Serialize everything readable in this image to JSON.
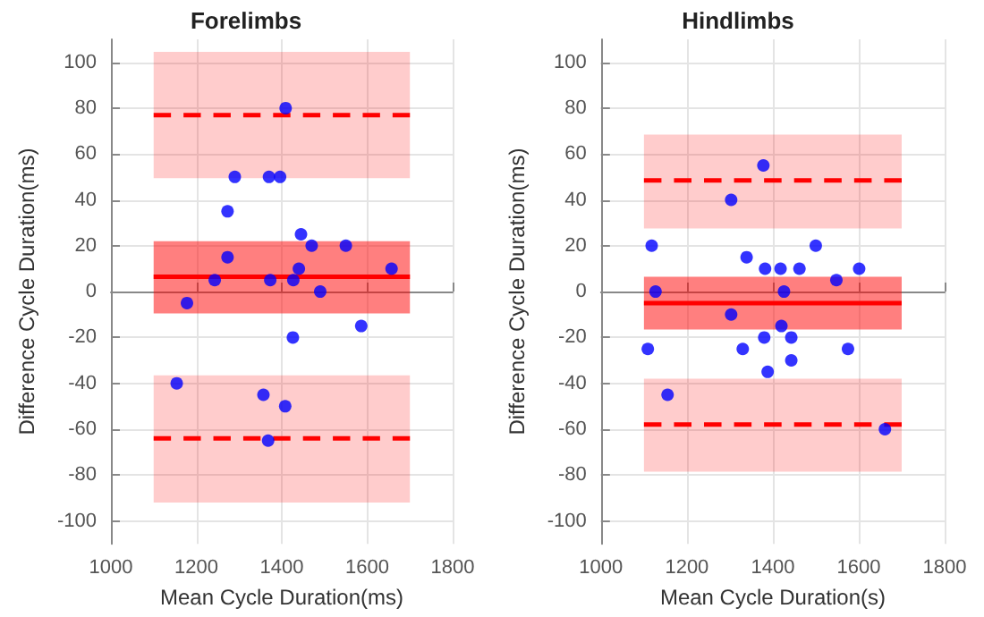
{
  "chart_data": [
    {
      "type": "scatter",
      "title": "Forelimbs",
      "xlabel": "Mean Cycle Duration(ms)",
      "ylabel": "Difference Cycle Duration(ms)",
      "xlim": [
        1000,
        1800
      ],
      "xticks": [
        1000,
        1200,
        1400,
        1600,
        1800
      ],
      "ylim": [
        -110,
        110
      ],
      "yticks": [
        -100,
        -80,
        -60,
        -40,
        -20,
        0,
        20,
        40,
        60,
        80,
        100
      ],
      "grid": true,
      "series": [
        {
          "type": "scatter",
          "color": "#0000ff",
          "marker": "circle",
          "x": [
            1409,
            1290,
            1370,
            1396,
            1273,
            1445,
            1470,
            1550,
            1273,
            1657,
            1440,
            1243,
            1373,
            1427,
            1490,
            1178,
            1586,
            1426,
            1154,
            1357,
            1408,
            1368
          ],
          "values": [
            80,
            50,
            50,
            50,
            35,
            25,
            20,
            20,
            15,
            10,
            10,
            5,
            5,
            5,
            0,
            -5,
            -15,
            -20,
            -40,
            -45,
            -50,
            -65
          ]
        },
        {
          "type": "line",
          "color": "#ff0000",
          "line_style": "dashed",
          "x": [
            1100,
            1700
          ],
          "values": [
            77,
            77
          ],
          "lower": [
            49.5,
            49.5
          ],
          "upper": [
            104.5,
            104.5
          ]
        },
        {
          "type": "line",
          "color": "#ff0000",
          "line_style": "solid",
          "x": [
            1100,
            1700
          ],
          "values": [
            6.5,
            6.5
          ],
          "lower": [
            -9.5,
            -9.5
          ],
          "upper": [
            22,
            22
          ]
        },
        {
          "type": "line",
          "color": "#ff0000",
          "line_style": "dashed",
          "x": [
            1100,
            1700
          ],
          "values": [
            -64,
            -64
          ],
          "lower": [
            -92,
            -92
          ],
          "upper": [
            -36.5,
            -36.5
          ]
        }
      ]
    },
    {
      "type": "scatter",
      "title": "Hindlimbs",
      "xlabel": "Mean Cycle Duration(s)",
      "ylabel": "Difference Cycle Duration(ms)",
      "xlim": [
        1000,
        1800
      ],
      "xticks": [
        1000,
        1200,
        1400,
        1600,
        1800
      ],
      "ylim": [
        -110,
        110
      ],
      "yticks": [
        -100,
        -80,
        -60,
        -40,
        -20,
        0,
        20,
        40,
        60,
        80,
        100
      ],
      "grid": true,
      "series": [
        {
          "type": "scatter",
          "color": "#0000ff",
          "marker": "circle",
          "x": [
            1378,
            1303,
            1118,
            1500,
            1339,
            1382,
            1418,
            1462,
            1601,
            1548,
            1127,
            1426,
            1303,
            1420,
            1380,
            1443,
            1109,
            1330,
            1575,
            1443,
            1388,
            1155,
            1661
          ],
          "values": [
            55,
            40,
            20,
            20,
            15,
            10,
            10,
            10,
            10,
            5,
            0,
            0,
            -10,
            -15,
            -20,
            -20,
            -25,
            -25,
            -25,
            -30,
            -35,
            -45,
            -60
          ]
        },
        {
          "type": "line",
          "color": "#ff0000",
          "line_style": "dashed",
          "x": [
            1100,
            1700
          ],
          "values": [
            48.5,
            48.5
          ],
          "lower": [
            27.5,
            27.5
          ],
          "upper": [
            68.5,
            68.5
          ]
        },
        {
          "type": "line",
          "color": "#ff0000",
          "line_style": "solid",
          "x": [
            1100,
            1700
          ],
          "values": [
            -5,
            -5
          ],
          "lower": [
            -16.5,
            -16.5
          ],
          "upper": [
            6.5,
            6.5
          ]
        },
        {
          "type": "line",
          "color": "#ff0000",
          "line_style": "dashed",
          "x": [
            1100,
            1700
          ],
          "values": [
            -58,
            -58
          ],
          "lower": [
            -78.5,
            -78.5
          ],
          "upper": [
            -38,
            -38
          ]
        }
      ]
    }
  ]
}
